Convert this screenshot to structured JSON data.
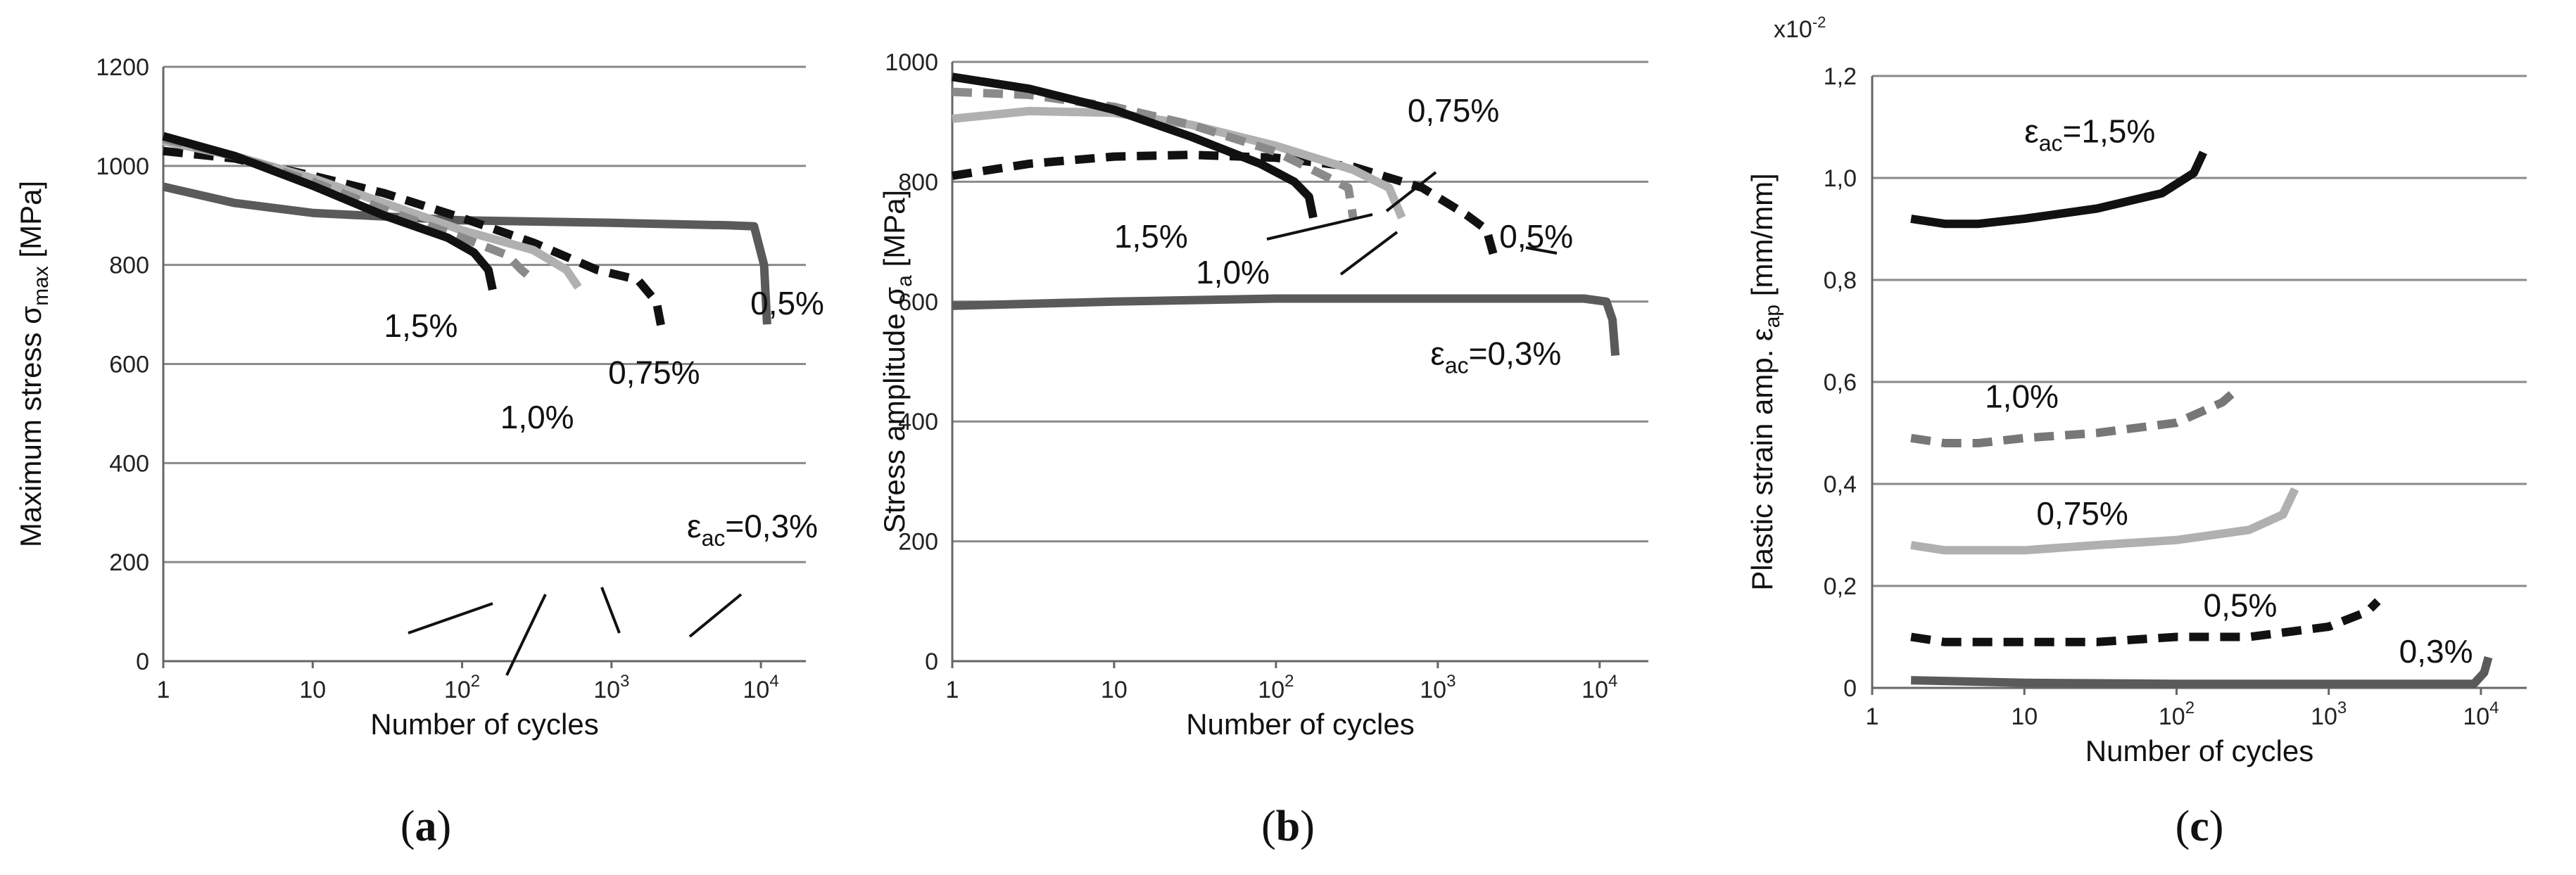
{
  "chart_data": [
    {
      "type": "line",
      "panel_label": "(a)",
      "xlabel": "Number of cycles",
      "ylabel": "Maximum stress σmax [MPa]",
      "ylabel_main": "Maximum stress σ",
      "ylabel_sub": "max",
      "ylabel_unit": " [MPa]",
      "xscale": "log",
      "xlim": [
        1,
        20000
      ],
      "ylim": [
        0,
        1200
      ],
      "xticks": [
        {
          "v": 1,
          "base": "1",
          "exp": ""
        },
        {
          "v": 10,
          "base": "10",
          "exp": ""
        },
        {
          "v": 100,
          "base": "10",
          "exp": "2"
        },
        {
          "v": 1000,
          "base": "10",
          "exp": "3"
        },
        {
          "v": 10000,
          "base": "10",
          "exp": "4"
        }
      ],
      "yticks": [
        0,
        200,
        400,
        600,
        800,
        1000,
        1200
      ],
      "series": [
        {
          "name": "ε_ac=0,3%",
          "color": "#5a5a5a",
          "dash": "",
          "x": [
            1,
            3,
            10,
            100,
            1000,
            6000,
            9000,
            10500,
            11000
          ],
          "y": [
            958,
            925,
            905,
            890,
            885,
            880,
            878,
            800,
            680
          ]
        },
        {
          "name": "0,5%",
          "color": "#111111",
          "dash": "28,16",
          "x": [
            1,
            3,
            10,
            30,
            100,
            300,
            800,
            1500,
            2000,
            2200
          ],
          "y": [
            1030,
            1015,
            980,
            945,
            895,
            845,
            790,
            770,
            725,
            660
          ]
        },
        {
          "name": "0,75%",
          "color": "#b0b0b0",
          "dash": "",
          "x": [
            1,
            3,
            10,
            30,
            100,
            300,
            500,
            600
          ],
          "y": [
            1050,
            1020,
            975,
            925,
            870,
            830,
            790,
            755
          ]
        },
        {
          "name": "1,0%",
          "color": "#8a8a8a",
          "dash": "28,16",
          "x": [
            1,
            3,
            10,
            30,
            100,
            200,
            250,
            300
          ],
          "y": [
            1055,
            1020,
            968,
            912,
            855,
            820,
            790,
            770
          ]
        },
        {
          "name": "1,5%",
          "color": "#111111",
          "dash": "",
          "x": [
            1,
            3,
            10,
            30,
            80,
            120,
            150,
            160
          ],
          "y": [
            1060,
            1020,
            960,
            900,
            855,
            825,
            790,
            750
          ]
        }
      ],
      "labels": [
        {
          "text": "ε",
          "sub": "ac",
          "after": "=0,3%",
          "x": 3200,
          "y": 250
        },
        {
          "text": "0,5%",
          "x": 8500,
          "y": 700
        },
        {
          "text": "0,75%",
          "x": 950,
          "y": 560
        },
        {
          "text": "1,0%",
          "x": 180,
          "y": 470
        },
        {
          "text": "1,5%",
          "x": 30,
          "y": 655
        }
      ]
    },
    {
      "type": "line",
      "panel_label": "(b)",
      "xlabel": "Number of cycles",
      "ylabel": "Stress amplitude σa [MPa]",
      "ylabel_main": "Stress amplitude σ",
      "ylabel_sub": "a",
      "ylabel_unit": " [MPa]",
      "xscale": "log",
      "xlim": [
        1,
        20000
      ],
      "ylim": [
        0,
        1000
      ],
      "xticks": [
        {
          "v": 1,
          "base": "1",
          "exp": ""
        },
        {
          "v": 10,
          "base": "10",
          "exp": ""
        },
        {
          "v": 100,
          "base": "10",
          "exp": "2"
        },
        {
          "v": 1000,
          "base": "10",
          "exp": "3"
        },
        {
          "v": 10000,
          "base": "10",
          "exp": "4"
        }
      ],
      "yticks": [
        0,
        200,
        400,
        600,
        800,
        1000
      ],
      "series": [
        {
          "name": "ε_ac=0,3%",
          "color": "#5a5a5a",
          "dash": "",
          "x": [
            1,
            10,
            100,
            1000,
            8000,
            11000,
            12000,
            12500
          ],
          "y": [
            593,
            600,
            605,
            605,
            605,
            600,
            570,
            510
          ]
        },
        {
          "name": "0,5%",
          "color": "#111111",
          "dash": "28,16",
          "x": [
            1,
            3,
            10,
            30,
            100,
            300,
            800,
            1500,
            2000,
            2200
          ],
          "y": [
            810,
            830,
            842,
            845,
            840,
            825,
            790,
            745,
            720,
            680
          ]
        },
        {
          "name": "0,75%",
          "color": "#b0b0b0",
          "dash": "",
          "x": [
            1,
            3,
            10,
            30,
            100,
            300,
            500,
            600
          ],
          "y": [
            905,
            918,
            915,
            895,
            860,
            820,
            790,
            740
          ]
        },
        {
          "name": "1,0%",
          "color": "#8a8a8a",
          "dash": "28,16",
          "x": [
            1,
            3,
            10,
            30,
            100,
            200,
            280,
            300
          ],
          "y": [
            950,
            945,
            925,
            895,
            850,
            810,
            790,
            740
          ]
        },
        {
          "name": "1,5%",
          "color": "#111111",
          "dash": "",
          "x": [
            1,
            3,
            10,
            30,
            80,
            130,
            160,
            170
          ],
          "y": [
            975,
            955,
            920,
            875,
            830,
            800,
            775,
            740
          ]
        }
      ],
      "labels": [
        {
          "text": "0,75%",
          "x": 650,
          "y": 900
        },
        {
          "text": "0,5%",
          "x": 2400,
          "y": 690
        },
        {
          "text": "1,5%",
          "x": 10,
          "y": 690
        },
        {
          "text": "1,0%",
          "x": 32,
          "y": 630
        },
        {
          "text": "ε",
          "sub": "ac",
          "after": "=0,3%",
          "x": 900,
          "y": 495
        }
      ]
    },
    {
      "type": "line",
      "panel_label": "(c)",
      "xlabel": "Number of cycles",
      "ylabel": "Plastic strain amp. εap [mm/mm]",
      "ylabel_main": "Plastic strain amp. ε",
      "ylabel_sub": "ap",
      "ylabel_unit": " [mm/mm]",
      "scale_note_base": "x10",
      "scale_note_exp": "-2",
      "xscale": "log",
      "xlim": [
        1,
        20000
      ],
      "ylim": [
        0,
        1.2
      ],
      "xticks": [
        {
          "v": 1,
          "base": "1",
          "exp": ""
        },
        {
          "v": 10,
          "base": "10",
          "exp": ""
        },
        {
          "v": 100,
          "base": "10",
          "exp": "2"
        },
        {
          "v": 1000,
          "base": "10",
          "exp": "3"
        },
        {
          "v": 10000,
          "base": "10",
          "exp": "4"
        }
      ],
      "yticks": [
        {
          "v": 0,
          "t": "0"
        },
        {
          "v": 0.2,
          "t": "0,2"
        },
        {
          "v": 0.4,
          "t": "0,4"
        },
        {
          "v": 0.6,
          "t": "0,6"
        },
        {
          "v": 0.8,
          "t": "0,8"
        },
        {
          "v": 1.0,
          "t": "1,0"
        },
        {
          "v": 1.2,
          "t": "1,2"
        }
      ],
      "series": [
        {
          "name": "ε_ac=1,5%",
          "color": "#111111",
          "dash": "",
          "x": [
            1.8,
            3,
            5,
            10,
            30,
            80,
            130,
            150
          ],
          "y": [
            0.92,
            0.91,
            0.91,
            0.92,
            0.94,
            0.97,
            1.01,
            1.05
          ]
        },
        {
          "name": "1,0%",
          "color": "#777777",
          "dash": "28,16",
          "x": [
            1.8,
            3,
            5,
            10,
            30,
            100,
            200,
            260
          ],
          "y": [
            0.49,
            0.48,
            0.48,
            0.49,
            0.5,
            0.52,
            0.56,
            0.59
          ]
        },
        {
          "name": "0,75%",
          "color": "#b0b0b0",
          "dash": "",
          "x": [
            1.8,
            3,
            10,
            30,
            100,
            300,
            500,
            600
          ],
          "y": [
            0.28,
            0.27,
            0.27,
            0.28,
            0.29,
            0.31,
            0.34,
            0.39
          ]
        },
        {
          "name": "0,5%",
          "color": "#111111",
          "dash": "28,16",
          "x": [
            1.8,
            3,
            10,
            30,
            100,
            300,
            1000,
            1800,
            2100
          ],
          "y": [
            0.1,
            0.09,
            0.09,
            0.09,
            0.1,
            0.1,
            0.12,
            0.15,
            0.17
          ]
        },
        {
          "name": "0,3%",
          "color": "#5a5a5a",
          "dash": "",
          "x": [
            1.8,
            10,
            100,
            1000,
            9000,
            10500,
            11200
          ],
          "y": [
            0.015,
            0.01,
            0.008,
            0.008,
            0.008,
            0.03,
            0.06
          ]
        }
      ],
      "labels": [
        {
          "text": "ε",
          "sub": "ac",
          "after": "=1,5%",
          "x": 10,
          "y": 1.07
        },
        {
          "text": "1,0%",
          "x": 5.5,
          "y": 0.55
        },
        {
          "text": "0,75%",
          "x": 12,
          "y": 0.32
        },
        {
          "text": "0,5%",
          "x": 150,
          "y": 0.14
        },
        {
          "text": "0,3%",
          "x": 2900,
          "y": 0.05
        }
      ]
    }
  ]
}
